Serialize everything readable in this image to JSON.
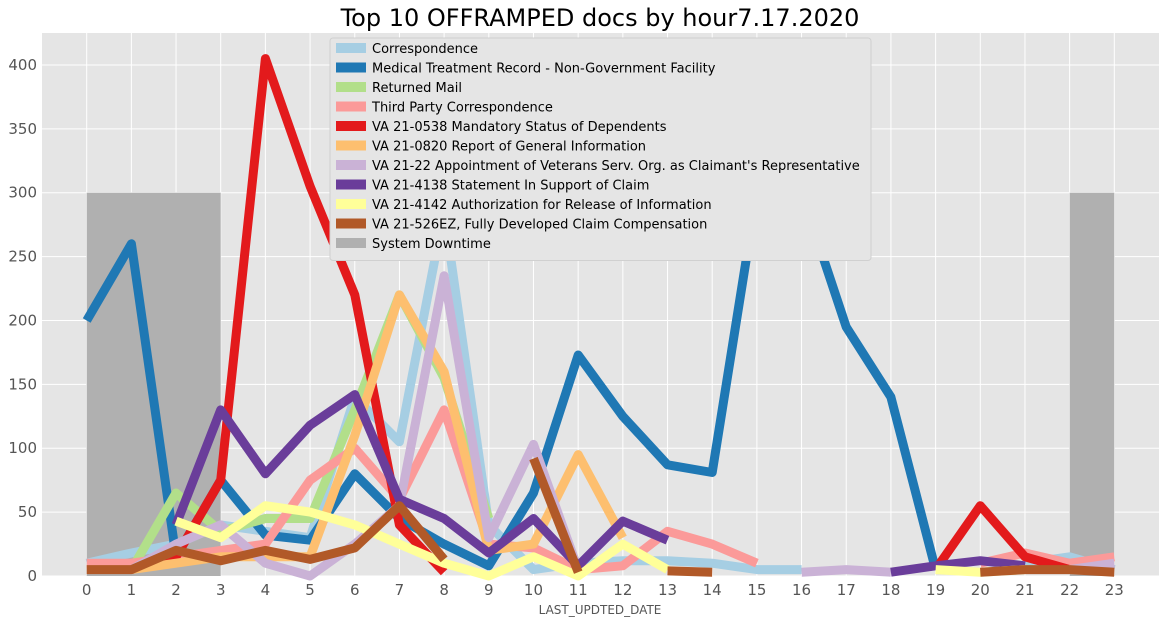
{
  "chart_data": {
    "type": "line",
    "title": "Top 10 OFFRAMPED docs by hour7.17.2020",
    "xlabel": "LAST_UPDTED_DATE",
    "ylabel": "",
    "x": [
      0,
      1,
      2,
      3,
      4,
      5,
      6,
      7,
      8,
      9,
      10,
      11,
      12,
      13,
      14,
      15,
      16,
      17,
      18,
      19,
      20,
      21,
      22,
      23
    ],
    "xlim": [
      -1,
      24
    ],
    "ylim": [
      0,
      425
    ],
    "yticks": [
      0,
      50,
      100,
      150,
      200,
      250,
      300,
      350,
      400
    ],
    "grid": true,
    "legend_position": "top-center",
    "background": "#e5e5e5",
    "series": [
      {
        "name": "Correspondence",
        "color": "#a6cee3",
        "values": [
          10,
          18,
          25,
          40,
          35,
          30,
          140,
          105,
          285,
          40,
          5,
          10,
          12,
          12,
          10,
          5,
          5,
          null,
          null,
          null,
          null,
          10,
          15,
          5
        ]
      },
      {
        "name": "Medical Treatment Record - Non-Government Facility",
        "color": "#1f78b4",
        "values": [
          200,
          260,
          15,
          75,
          32,
          28,
          80,
          45,
          25,
          8,
          65,
          173,
          125,
          87,
          81,
          300,
          300,
          195,
          140,
          5,
          null,
          null,
          null,
          null
        ]
      },
      {
        "name": "Returned Mail",
        "color": "#b2df8a",
        "values": [
          null,
          5,
          65,
          35,
          45,
          45,
          130,
          220,
          155,
          45,
          null,
          null,
          null,
          null,
          null,
          null,
          null,
          null,
          null,
          null,
          null,
          null,
          null,
          null
        ]
      },
      {
        "name": "Third Party Correspondence",
        "color": "#fb9a99",
        "values": [
          10,
          10,
          15,
          20,
          25,
          75,
          100,
          60,
          130,
          25,
          22,
          5,
          8,
          35,
          25,
          10,
          null,
          null,
          null,
          null,
          10,
          18,
          10,
          15
        ]
      },
      {
        "name": "VA 21-0538 Mandatory Status of Dependents",
        "color": "#e31a1c",
        "values": [
          null,
          5,
          15,
          75,
          405,
          305,
          220,
          40,
          3,
          null,
          null,
          null,
          null,
          null,
          null,
          null,
          null,
          null,
          null,
          5,
          55,
          15,
          5,
          null
        ]
      },
      {
        "name": "VA 21-0820 Report of General Information",
        "color": "#fdbf6f",
        "values": [
          null,
          5,
          10,
          15,
          15,
          15,
          110,
          220,
          160,
          20,
          25,
          95,
          30,
          null,
          null,
          null,
          null,
          null,
          null,
          null,
          null,
          null,
          null,
          null
        ]
      },
      {
        "name": "VA 21-22 Appointment of Veterans Serv. Org. as Claimant's Representative",
        "color": "#cab2d6",
        "values": [
          null,
          5,
          25,
          40,
          10,
          0,
          25,
          55,
          235,
          30,
          103,
          5,
          null,
          null,
          null,
          null,
          3,
          5,
          3,
          null,
          null,
          null,
          5,
          10
        ]
      },
      {
        "name": "VA 21-4138 Statement In Support of Claim",
        "color": "#6a3d9a",
        "values": [
          null,
          null,
          40,
          130,
          80,
          118,
          142,
          60,
          45,
          18,
          45,
          8,
          43,
          28,
          null,
          null,
          5,
          null,
          3,
          8,
          12,
          8,
          null,
          null
        ]
      },
      {
        "name": "VA 21-4142 Authorization for Release of Information",
        "color": "#ffff99",
        "values": [
          null,
          null,
          43,
          30,
          55,
          50,
          40,
          25,
          10,
          0,
          15,
          0,
          25,
          5,
          null,
          null,
          null,
          null,
          null,
          5,
          3,
          5,
          null,
          null
        ]
      },
      {
        "name": "VA 21-526EZ, Fully Developed Claim Compensation",
        "color": "#b15928",
        "values": [
          5,
          5,
          20,
          12,
          20,
          13,
          22,
          55,
          13,
          null,
          92,
          3,
          null,
          4,
          3,
          null,
          null,
          null,
          null,
          null,
          3,
          5,
          5,
          3
        ]
      },
      {
        "name": "System Downtime",
        "color": "#b0b0b0",
        "kind": "band"
      }
    ],
    "downtime": [
      {
        "start": 0,
        "end": 3,
        "value": 300
      },
      {
        "start": 22,
        "end": 23,
        "value": 300
      }
    ]
  }
}
